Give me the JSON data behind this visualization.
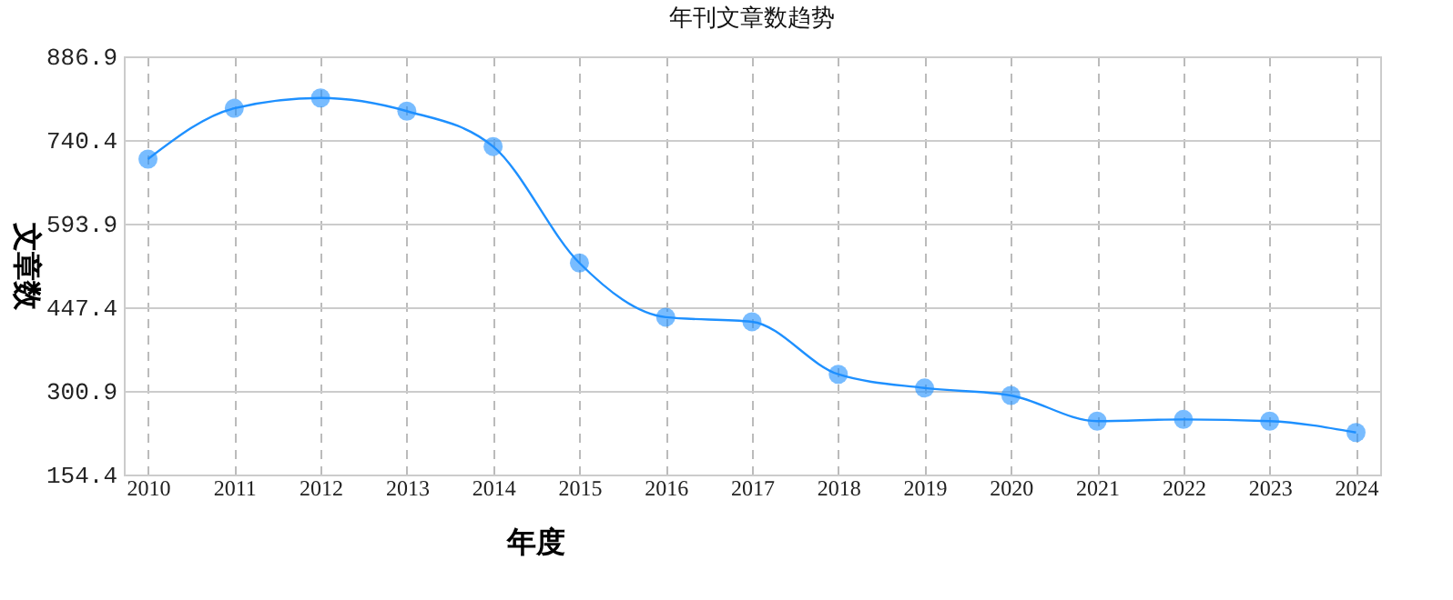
{
  "chart_data": {
    "type": "line",
    "title": "年刊文章数趋势",
    "xlabel": "年度",
    "ylabel": "文章数",
    "categories": [
      "2010",
      "2011",
      "2012",
      "2013",
      "2014",
      "2015",
      "2016",
      "2017",
      "2018",
      "2019",
      "2020",
      "2021",
      "2022",
      "2023",
      "2024"
    ],
    "series": [
      {
        "color": "#1e90ff",
        "values": [
          707,
          796,
          814,
          791,
          729,
          525,
          430,
          422,
          330,
          306,
          293,
          248,
          251,
          248,
          228
        ]
      }
    ],
    "ylim": [
      154.4,
      886.9
    ],
    "yticks": [
      154.4,
      300.9,
      447.4,
      593.9,
      740.4,
      886.9
    ],
    "grid": true,
    "marker": "circle",
    "line_style": "solid"
  }
}
